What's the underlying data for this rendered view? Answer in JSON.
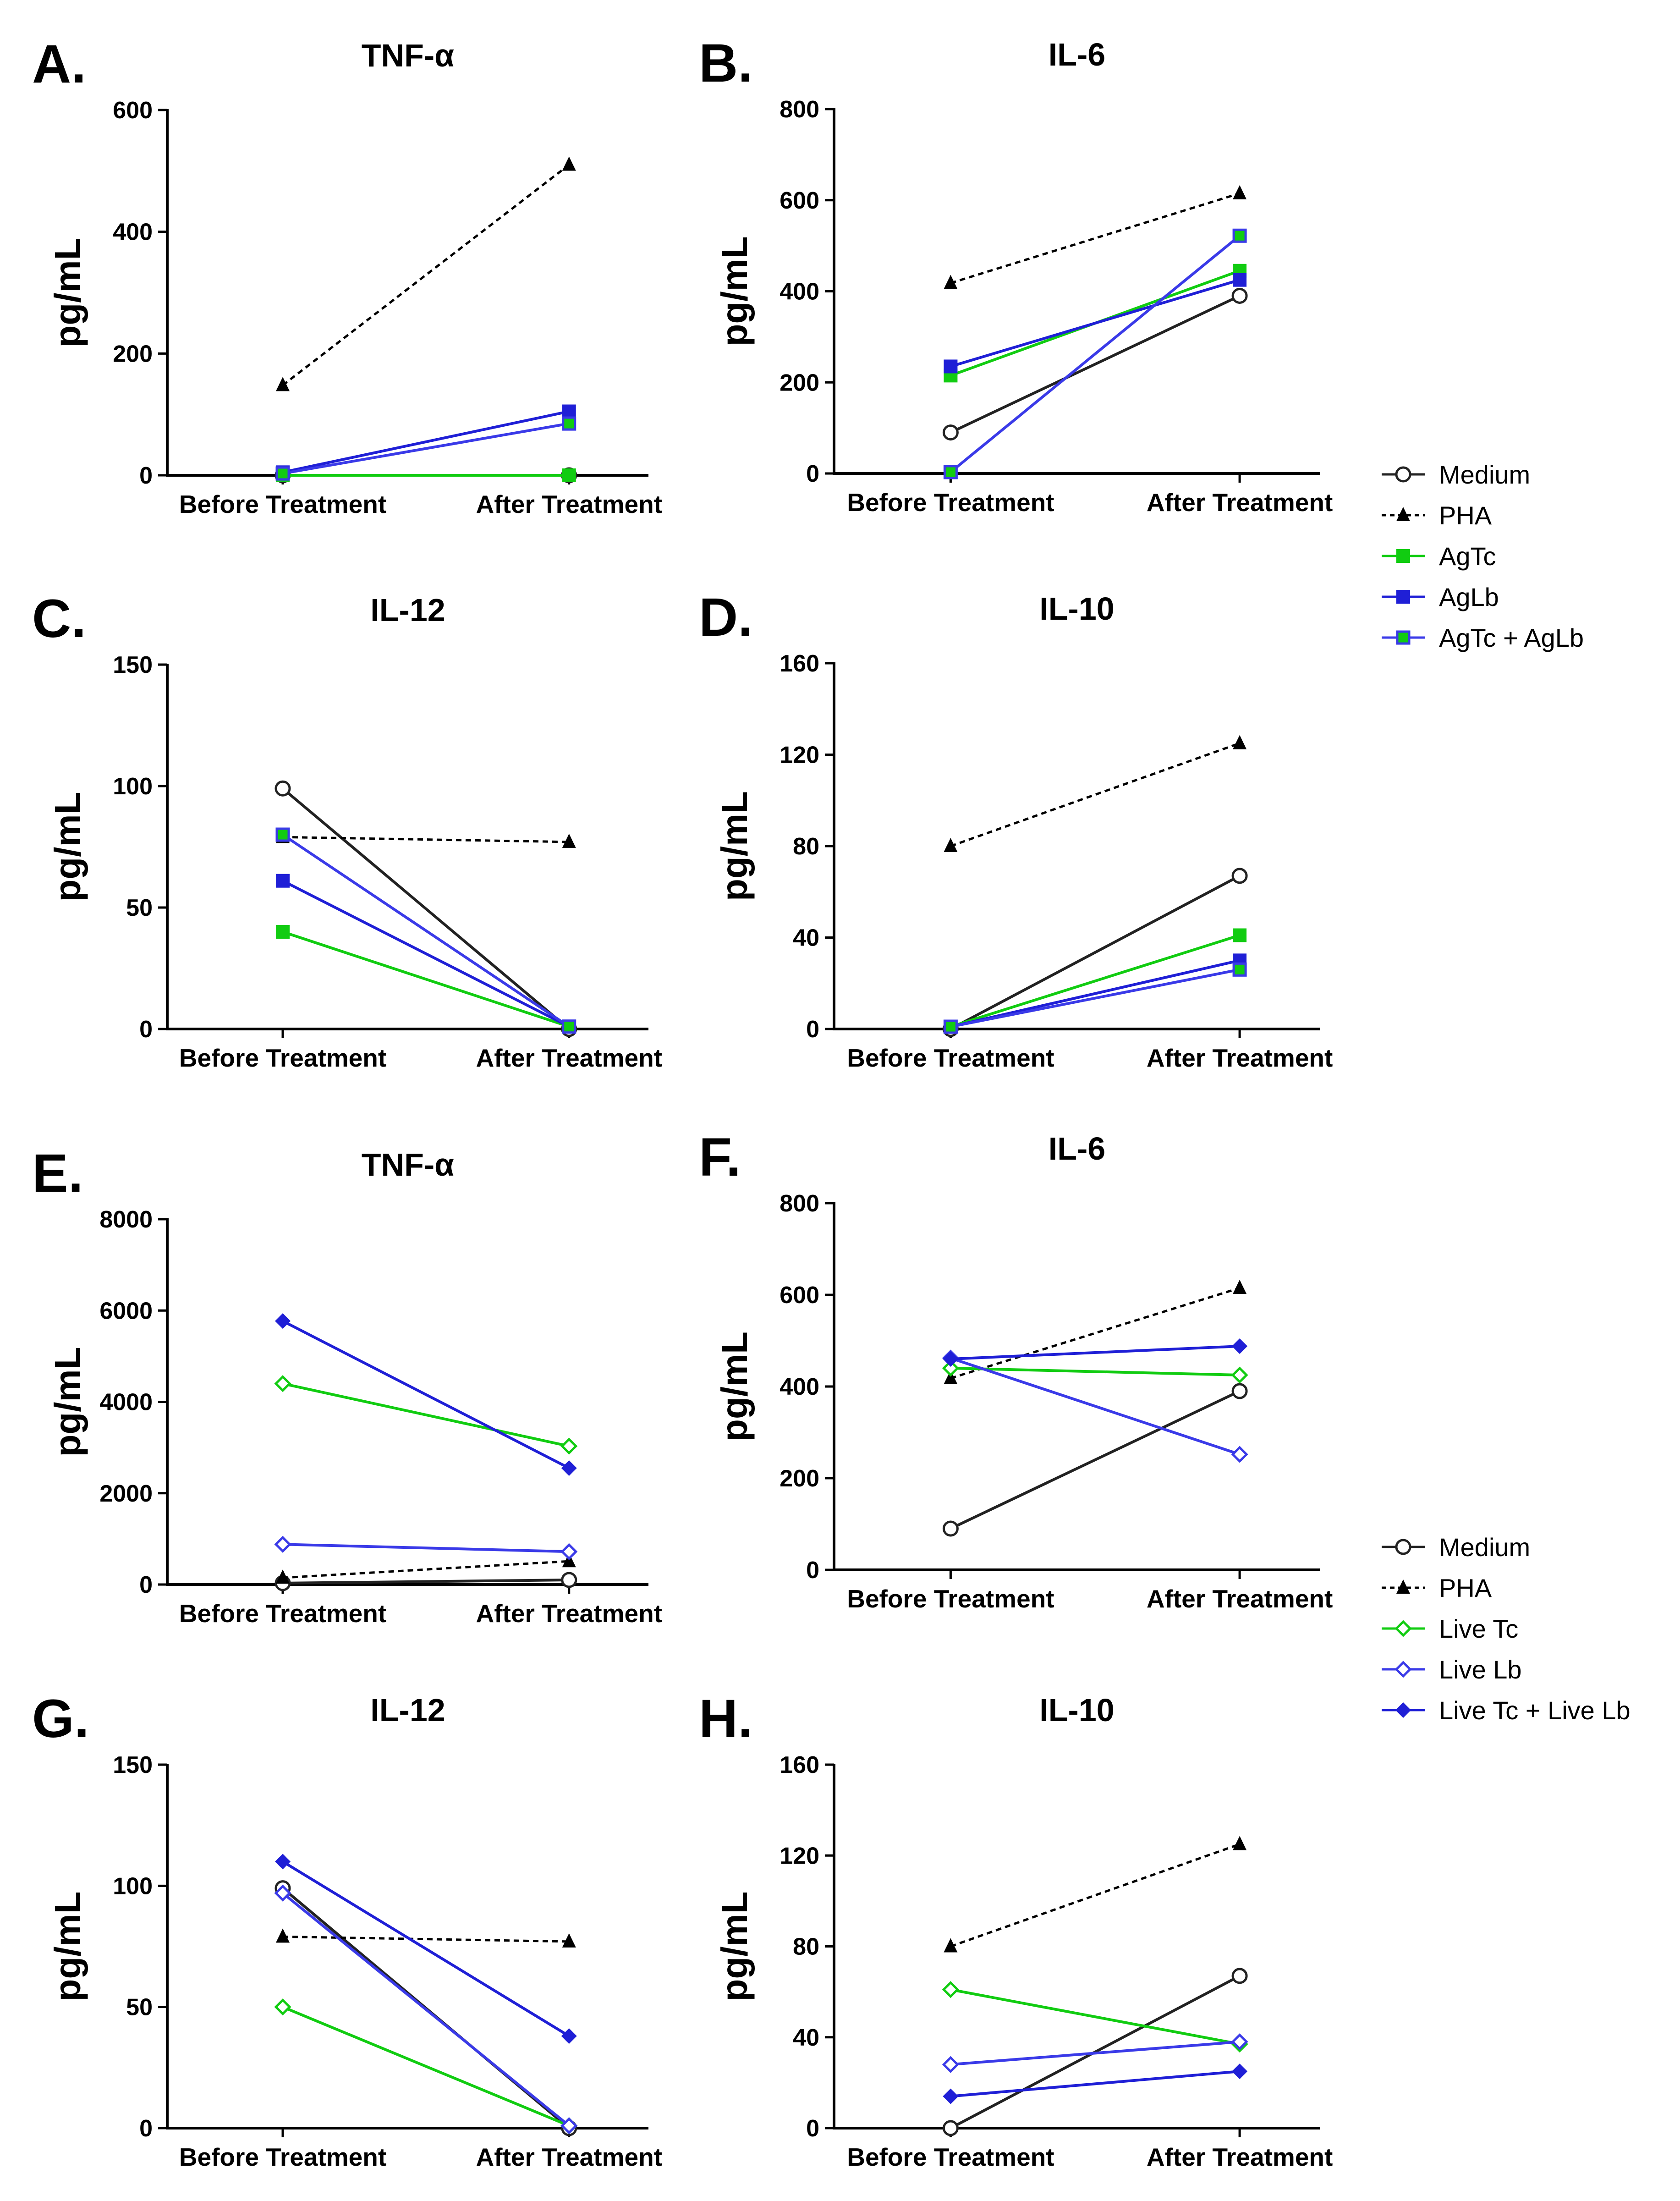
{
  "colors": {
    "medium": "#222222",
    "pha": "#000000",
    "green": "#11cc11",
    "blue": "#3a3ae8",
    "blue_dark": "#1f1fd6"
  },
  "legends": [
    {
      "id": "legend-antigen",
      "entries": [
        {
          "label": "Medium",
          "color": "#222222",
          "marker": "circle-open",
          "dash": false
        },
        {
          "label": "PHA",
          "color": "#000000",
          "marker": "triangle",
          "dash": true
        },
        {
          "label": "AgTc",
          "color": "#11cc11",
          "marker": "square",
          "dash": false
        },
        {
          "label": "AgLb",
          "color": "#1f1fd6",
          "marker": "square",
          "dash": false
        },
        {
          "label": "AgTc + AgLb",
          "color": "#3a3ae8",
          "marker": "square-green",
          "dash": false
        }
      ]
    },
    {
      "id": "legend-live",
      "entries": [
        {
          "label": "Medium",
          "color": "#222222",
          "marker": "circle-open",
          "dash": false
        },
        {
          "label": "PHA",
          "color": "#000000",
          "marker": "triangle",
          "dash": true
        },
        {
          "label": "Live Tc",
          "color": "#11cc11",
          "marker": "diamond-open",
          "dash": false
        },
        {
          "label": "Live Lb",
          "color": "#3a3ae8",
          "marker": "diamond-open",
          "dash": false
        },
        {
          "label": "Live Tc + Live Lb",
          "color": "#1f1fd6",
          "marker": "diamond",
          "dash": false
        }
      ]
    }
  ],
  "chart_data": [
    {
      "type": "line",
      "letter": "A.",
      "title": "TNF-α",
      "ylabel": "pg/mL",
      "categories": [
        "Before Treatment",
        "After Treatment"
      ],
      "ylim": [
        0,
        600
      ],
      "yticks": [
        0,
        200,
        400,
        600
      ],
      "series": [
        {
          "name": "Medium",
          "values": [
            0,
            0
          ],
          "color": "#222222",
          "marker": "circle-open",
          "dash": false
        },
        {
          "name": "PHA",
          "values": [
            148,
            510
          ],
          "color": "#000000",
          "marker": "triangle",
          "dash": true
        },
        {
          "name": "AgTc",
          "values": [
            0,
            0
          ],
          "color": "#11cc11",
          "marker": "square",
          "dash": false
        },
        {
          "name": "AgLb",
          "values": [
            5,
            105
          ],
          "color": "#1f1fd6",
          "marker": "square",
          "dash": false
        },
        {
          "name": "AgTc + AgLb",
          "values": [
            3,
            85
          ],
          "color": "#3a3ae8",
          "marker": "square-green",
          "dash": false
        }
      ]
    },
    {
      "type": "line",
      "letter": "B.",
      "title": "IL-6",
      "ylabel": "pg/mL",
      "categories": [
        "Before Treatment",
        "After Treatment"
      ],
      "ylim": [
        0,
        800
      ],
      "yticks": [
        0,
        200,
        400,
        600,
        800
      ],
      "series": [
        {
          "name": "Medium",
          "values": [
            90,
            390
          ],
          "color": "#222222",
          "marker": "circle-open",
          "dash": false
        },
        {
          "name": "PHA",
          "values": [
            418,
            615
          ],
          "color": "#000000",
          "marker": "triangle",
          "dash": true
        },
        {
          "name": "AgTc",
          "values": [
            215,
            445
          ],
          "color": "#11cc11",
          "marker": "square",
          "dash": false
        },
        {
          "name": "AgLb",
          "values": [
            235,
            425
          ],
          "color": "#1f1fd6",
          "marker": "square",
          "dash": false
        },
        {
          "name": "AgTc + AgLb",
          "values": [
            3,
            522
          ],
          "color": "#3a3ae8",
          "marker": "square-green",
          "dash": false
        }
      ]
    },
    {
      "type": "line",
      "letter": "C.",
      "title": "IL-12",
      "ylabel": "pg/mL",
      "categories": [
        "Before Treatment",
        "After Treatment"
      ],
      "ylim": [
        0,
        150
      ],
      "yticks": [
        0,
        50,
        100,
        150
      ],
      "series": [
        {
          "name": "Medium",
          "values": [
            99,
            0
          ],
          "color": "#222222",
          "marker": "circle-open",
          "dash": false
        },
        {
          "name": "PHA",
          "values": [
            79,
            77
          ],
          "color": "#000000",
          "marker": "triangle",
          "dash": true
        },
        {
          "name": "AgTc",
          "values": [
            40,
            1
          ],
          "color": "#11cc11",
          "marker": "square",
          "dash": false
        },
        {
          "name": "AgLb",
          "values": [
            61,
            1
          ],
          "color": "#1f1fd6",
          "marker": "square",
          "dash": false
        },
        {
          "name": "AgTc + AgLb",
          "values": [
            80,
            1
          ],
          "color": "#3a3ae8",
          "marker": "square-green",
          "dash": false
        }
      ]
    },
    {
      "type": "line",
      "letter": "D.",
      "title": "IL-10",
      "ylabel": "pg/mL",
      "categories": [
        "Before Treatment",
        "After Treatment"
      ],
      "ylim": [
        0,
        160
      ],
      "yticks": [
        0,
        40,
        80,
        120,
        160
      ],
      "series": [
        {
          "name": "Medium",
          "values": [
            0,
            67
          ],
          "color": "#222222",
          "marker": "circle-open",
          "dash": false
        },
        {
          "name": "PHA",
          "values": [
            80,
            125
          ],
          "color": "#000000",
          "marker": "triangle",
          "dash": true
        },
        {
          "name": "AgTc",
          "values": [
            1,
            41
          ],
          "color": "#11cc11",
          "marker": "square",
          "dash": false
        },
        {
          "name": "AgLb",
          "values": [
            1,
            30
          ],
          "color": "#1f1fd6",
          "marker": "square",
          "dash": false
        },
        {
          "name": "AgTc + AgLb",
          "values": [
            1,
            26
          ],
          "color": "#3a3ae8",
          "marker": "square-green",
          "dash": false
        }
      ]
    },
    {
      "type": "line",
      "letter": "E.",
      "title": "TNF-α",
      "ylabel": "pg/mL",
      "categories": [
        "Before Treatment",
        "After Treatment"
      ],
      "ylim": [
        0,
        8000
      ],
      "yticks": [
        0,
        2000,
        4000,
        6000,
        8000
      ],
      "series": [
        {
          "name": "Medium",
          "values": [
            30,
            100
          ],
          "color": "#222222",
          "marker": "circle-open",
          "dash": false
        },
        {
          "name": "PHA",
          "values": [
            148,
            510
          ],
          "color": "#000000",
          "marker": "triangle",
          "dash": true
        },
        {
          "name": "Live Tc",
          "values": [
            4400,
            3030
          ],
          "color": "#11cc11",
          "marker": "diamond-open",
          "dash": false
        },
        {
          "name": "Live Lb",
          "values": [
            880,
            720
          ],
          "color": "#3a3ae8",
          "marker": "diamond-open",
          "dash": false
        },
        {
          "name": "Live Tc + Live Lb",
          "values": [
            5770,
            2550
          ],
          "color": "#1f1fd6",
          "marker": "diamond",
          "dash": false
        }
      ]
    },
    {
      "type": "line",
      "letter": "F.",
      "title": "IL-6",
      "ylabel": "pg/mL",
      "categories": [
        "Before Treatment",
        "After Treatment"
      ],
      "ylim": [
        0,
        800
      ],
      "yticks": [
        0,
        200,
        400,
        600,
        800
      ],
      "series": [
        {
          "name": "Medium",
          "values": [
            90,
            390
          ],
          "color": "#222222",
          "marker": "circle-open",
          "dash": false
        },
        {
          "name": "PHA",
          "values": [
            418,
            615
          ],
          "color": "#000000",
          "marker": "triangle",
          "dash": true
        },
        {
          "name": "Live Tc",
          "values": [
            440,
            425
          ],
          "color": "#11cc11",
          "marker": "diamond-open",
          "dash": false
        },
        {
          "name": "Live Lb",
          "values": [
            462,
            252
          ],
          "color": "#3a3ae8",
          "marker": "diamond-open",
          "dash": false
        },
        {
          "name": "Live Tc + Live Lb",
          "values": [
            460,
            488
          ],
          "color": "#1f1fd6",
          "marker": "diamond",
          "dash": false
        }
      ]
    },
    {
      "type": "line",
      "letter": "G.",
      "title": "IL-12",
      "ylabel": "pg/mL",
      "categories": [
        "Before Treatment",
        "After Treatment"
      ],
      "ylim": [
        0,
        150
      ],
      "yticks": [
        0,
        50,
        100,
        150
      ],
      "series": [
        {
          "name": "Medium",
          "values": [
            99,
            0
          ],
          "color": "#222222",
          "marker": "circle-open",
          "dash": false
        },
        {
          "name": "PHA",
          "values": [
            79,
            77
          ],
          "color": "#000000",
          "marker": "triangle",
          "dash": true
        },
        {
          "name": "Live Tc",
          "values": [
            50,
            1
          ],
          "color": "#11cc11",
          "marker": "diamond-open",
          "dash": false
        },
        {
          "name": "Live Lb",
          "values": [
            97,
            1
          ],
          "color": "#3a3ae8",
          "marker": "diamond-open",
          "dash": false
        },
        {
          "name": "Live Tc + Live Lb",
          "values": [
            110,
            38
          ],
          "color": "#1f1fd6",
          "marker": "diamond",
          "dash": false
        }
      ]
    },
    {
      "type": "line",
      "letter": "H.",
      "title": "IL-10",
      "ylabel": "pg/mL",
      "categories": [
        "Before Treatment",
        "After Treatment"
      ],
      "ylim": [
        0,
        160
      ],
      "yticks": [
        0,
        40,
        80,
        120,
        160
      ],
      "series": [
        {
          "name": "Medium",
          "values": [
            0,
            67
          ],
          "color": "#222222",
          "marker": "circle-open",
          "dash": false
        },
        {
          "name": "PHA",
          "values": [
            80,
            125
          ],
          "color": "#000000",
          "marker": "triangle",
          "dash": true
        },
        {
          "name": "Live Tc",
          "values": [
            61,
            37
          ],
          "color": "#11cc11",
          "marker": "diamond-open",
          "dash": false
        },
        {
          "name": "Live Lb",
          "values": [
            28,
            38
          ],
          "color": "#3a3ae8",
          "marker": "diamond-open",
          "dash": false
        },
        {
          "name": "Live Tc + Live Lb",
          "values": [
            14,
            25
          ],
          "color": "#1f1fd6",
          "marker": "diamond",
          "dash": false
        }
      ]
    }
  ]
}
